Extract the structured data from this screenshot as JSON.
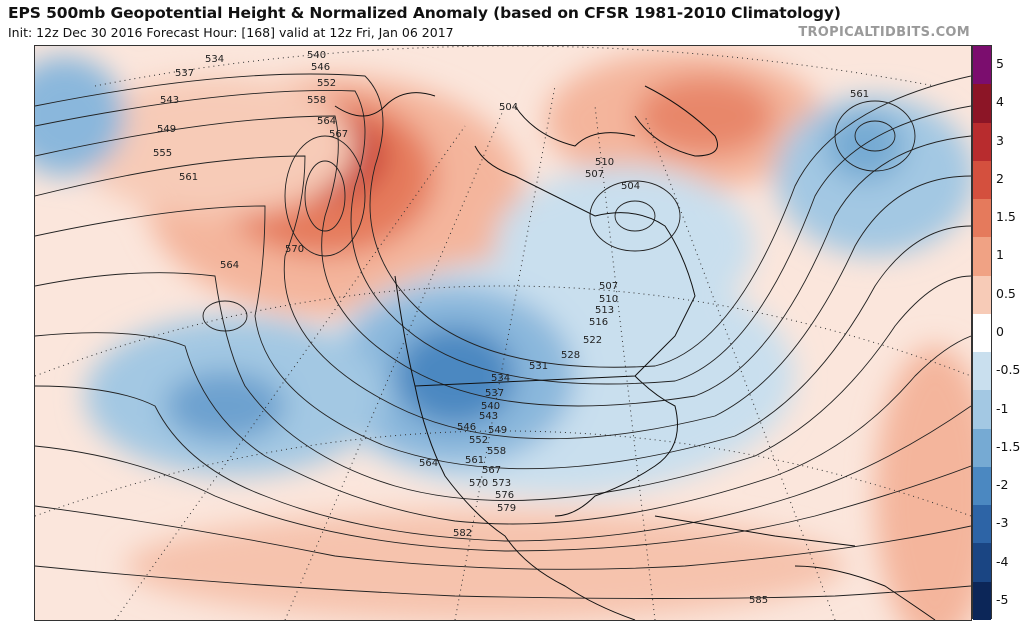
{
  "header": {
    "title": "EPS 500mb Geopotential Height & Normalized Anomaly (based on CFSR 1981-2010 Climatology)",
    "subtitle": "Init: 12z Dec 30 2016   Forecast Hour: [168]   valid at 12z Fri, Jan 06 2017",
    "credit": "TROPICALTIDBITS.COM"
  },
  "colorbar": {
    "labels": [
      "5",
      "4",
      "3",
      "2",
      "1.5",
      "1",
      "0.5",
      "0",
      "-0.5",
      "-1",
      "-1.5",
      "-2",
      "-3",
      "-4",
      "-5"
    ],
    "colors": [
      "#7b0d6e",
      "#8c1526",
      "#b82c2e",
      "#d4503e",
      "#e57a5c",
      "#f0a284",
      "#f7cbb7",
      "#ffffff",
      "#c9dfee",
      "#a3c8e3",
      "#76aad3",
      "#4b88c1",
      "#2d64a6",
      "#1a4583",
      "#0c2658"
    ]
  },
  "map": {
    "contours": [
      "504",
      "507",
      "510",
      "513",
      "516",
      "522",
      "528",
      "531",
      "534",
      "537",
      "540",
      "543",
      "546",
      "549",
      "552",
      "555",
      "558",
      "561",
      "564",
      "567",
      "570",
      "573",
      "576",
      "579",
      "582",
      "585"
    ],
    "anomaly_centers": [
      {
        "name": "ridge-west-coast",
        "value": 3
      },
      {
        "name": "ridge-greenland",
        "value": 2.5
      },
      {
        "name": "trough-western-us",
        "value": -2
      },
      {
        "name": "trough-pacific",
        "value": -1.5
      },
      {
        "name": "trough-north-atlantic",
        "value": -1.5
      },
      {
        "name": "trough-hudson-bay",
        "value": -1
      }
    ]
  }
}
